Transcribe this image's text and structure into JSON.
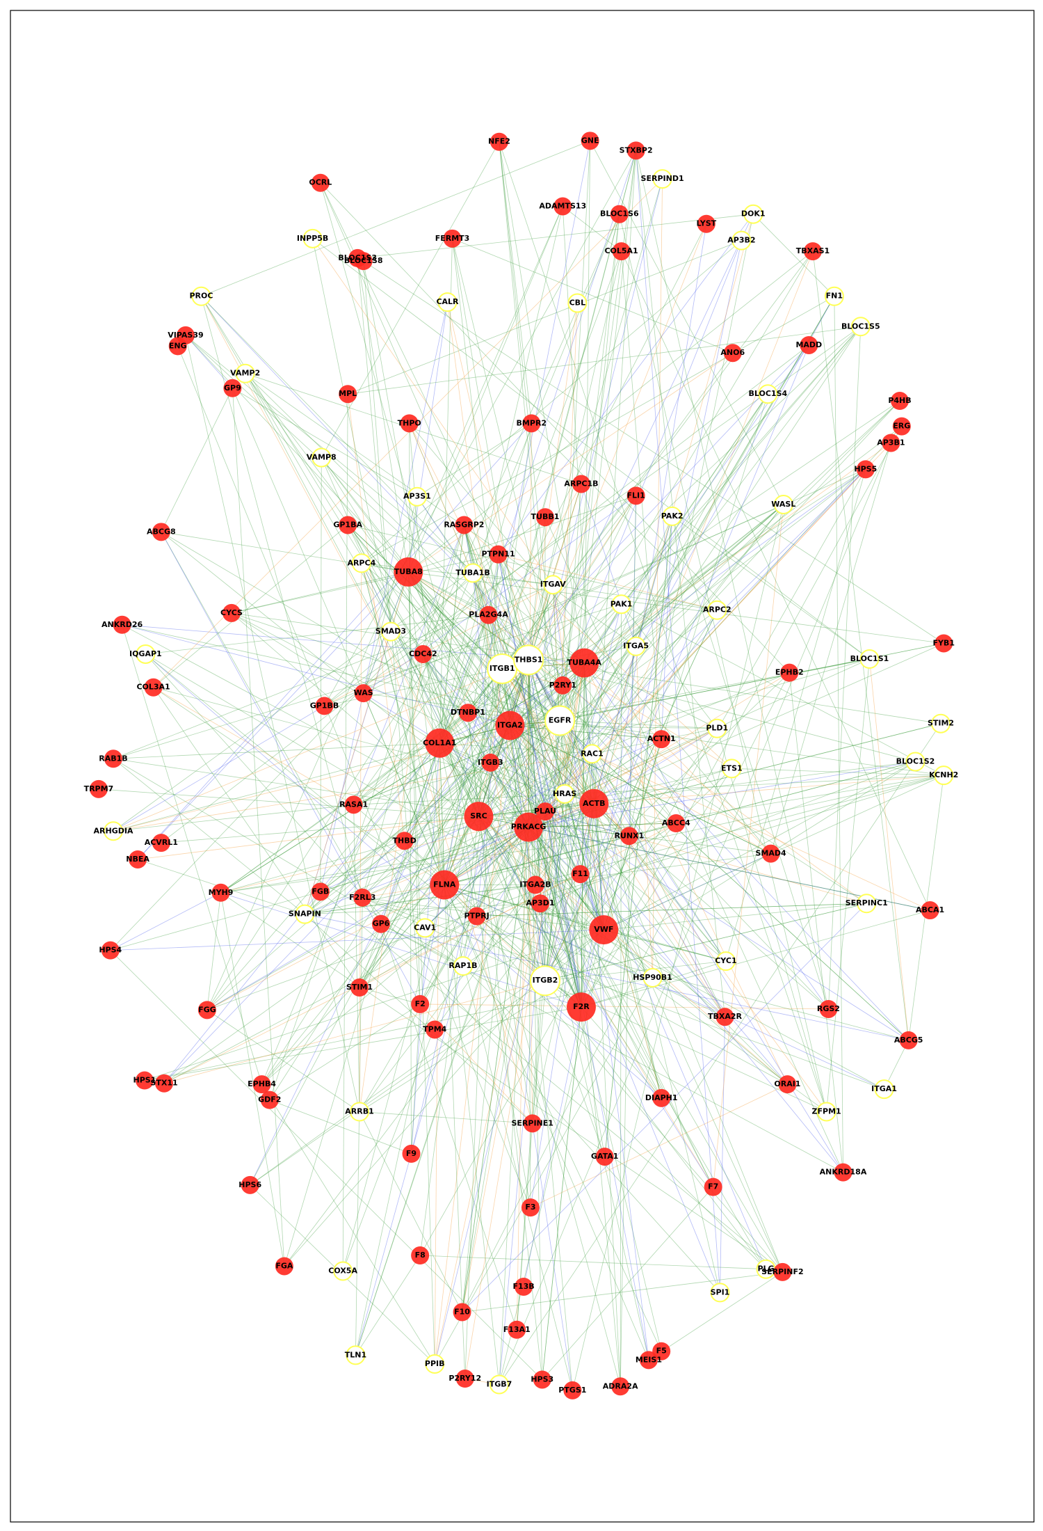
{
  "nodes": [
    "NFE2",
    "GNE",
    "STXBP2",
    "SERPIND1",
    "ADAMTS13",
    "BLOC1S6",
    "LYST",
    "DOK1",
    "OCRL",
    "INPP5B",
    "FERMT3",
    "COL5A1",
    "AP3B2",
    "TBXAS1",
    "BLOC1S3",
    "BLOC1S8",
    "PROC",
    "CALR",
    "CBL",
    "FN1",
    "BLOC1S5",
    "VIPAS39",
    "ENG",
    "MADD",
    "ANO6",
    "VAMP2",
    "GP9",
    "MPL",
    "BLOC1S4",
    "P4HB",
    "THPO",
    "BMPR2",
    "ERG",
    "AP3B1",
    "VAMP8",
    "HPS5",
    "ARPC1B",
    "FLI1",
    "AP3S1",
    "WASL",
    "PAK2",
    "TUBB1",
    "ABCG8",
    "GP1BA",
    "RASGRP2",
    "PTPN11",
    "ARPC4",
    "TUBA8",
    "TUBA1B",
    "ITGAV",
    "PAK1",
    "ARPC2",
    "CYCS",
    "ANKRD26",
    "PLA2G4A",
    "SMAD3",
    "IQGAP1",
    "CDC42",
    "ITGB1",
    "THBS1",
    "TUBA4A",
    "ITGA5",
    "FYB1",
    "BLOC1S1",
    "EPHB2",
    "COL3A1",
    "P2RY1",
    "WAS",
    "GP1BB",
    "DTNBP1",
    "ITGA2",
    "EGFR",
    "PLD1",
    "STIM2",
    "ACTN1",
    "COL1A1",
    "RAC1",
    "RAB1B",
    "ITGB3",
    "ETS1",
    "BLOC1S2",
    "KCNH2",
    "TRPM7",
    "HRAS",
    "RASA1",
    "ACTB",
    "PLAU",
    "SRC",
    "ABCC4",
    "PRKACG",
    "ARHGDIA",
    "THBD",
    "RUNX1",
    "ACVRL1",
    "NBEA",
    "SMAD4",
    "F11",
    "FLNA",
    "ITGA2B",
    "MYH9",
    "FGB",
    "F2RL3",
    "AP3D1",
    "SERPINC1",
    "ABCA1",
    "SNAPIN",
    "PTPRJ",
    "GP6",
    "CAV1",
    "VWF",
    "HPS4",
    "CYC1",
    "RAP1B",
    "HSP90B1",
    "ITGB2",
    "STIM1",
    "FGG",
    "F2",
    "F2R",
    "RGS2",
    "TBXA2R",
    "TPM4",
    "ABCG5",
    "HPS1",
    "STX11",
    "EPHB4",
    "ORAI1",
    "ITGA1",
    "DIAPH1",
    "GDF2",
    "ARRB1",
    "ZFPM1",
    "SERPINE1",
    "F9",
    "GATA1",
    "ANKRD18A",
    "HPS6",
    "F7",
    "F3",
    "F8",
    "FGA",
    "COX5A",
    "PLG",
    "SERPINF2",
    "F13B",
    "SPI1",
    "F10",
    "F13A1",
    "F5",
    "MEIS1",
    "TLN1",
    "PPIB",
    "P2RY12",
    "HPS3",
    "ITGB7",
    "PTGS1",
    "ADRA2A"
  ]
}
